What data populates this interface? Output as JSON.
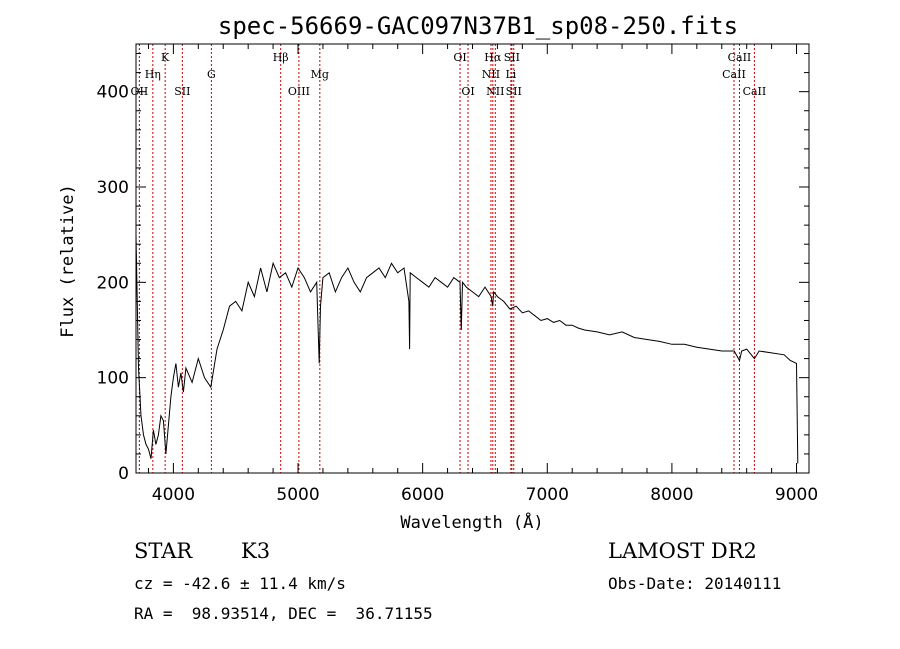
{
  "chart_data": {
    "type": "line",
    "title": "spec-56669-GAC097N37B1_sp08-250.fits",
    "xlabel": "Wavelength (Å)",
    "ylabel": "Flux (relative)",
    "xlim": [
      3700,
      9100
    ],
    "ylim": [
      0,
      450
    ],
    "x_ticks": [
      4000,
      5000,
      6000,
      7000,
      8000,
      9000
    ],
    "y_ticks": [
      0,
      100,
      200,
      300,
      400
    ],
    "grid": false,
    "line_color": "#000000",
    "marker_color": "#cc0000",
    "series": [
      {
        "x": [
          3700,
          3720,
          3740,
          3760,
          3780,
          3800,
          3820,
          3840,
          3860,
          3880,
          3900,
          3920,
          3940,
          3960,
          3980,
          4000,
          4020,
          4040,
          4060,
          4080,
          4100,
          4150,
          4200,
          4250,
          4300,
          4350,
          4400,
          4450,
          4500,
          4550,
          4600,
          4650,
          4700,
          4750,
          4800,
          4850,
          4900,
          4950,
          5000,
          5050,
          5100,
          5150,
          5170,
          5180,
          5200,
          5250,
          5300,
          5350,
          5400,
          5450,
          5500,
          5550,
          5600,
          5650,
          5700,
          5750,
          5800,
          5850,
          5890,
          5895,
          5900,
          5950,
          6000,
          6050,
          6100,
          6150,
          6200,
          6250,
          6300,
          6310,
          6320,
          6350,
          6400,
          6450,
          6500,
          6550,
          6562,
          6570,
          6600,
          6650,
          6700,
          6750,
          6800,
          6850,
          6900,
          6950,
          7000,
          7050,
          7100,
          7150,
          7200,
          7250,
          7300,
          7400,
          7500,
          7600,
          7700,
          7800,
          7900,
          8000,
          8100,
          8200,
          8300,
          8400,
          8500,
          8542,
          8560,
          8600,
          8662,
          8700,
          8800,
          8900,
          8950,
          9000,
          9010
        ],
        "y": [
          250,
          110,
          60,
          40,
          30,
          25,
          15,
          45,
          30,
          40,
          60,
          55,
          20,
          50,
          80,
          100,
          115,
          90,
          105,
          85,
          110,
          95,
          120,
          100,
          90,
          130,
          150,
          175,
          180,
          170,
          200,
          185,
          215,
          190,
          220,
          205,
          210,
          195,
          215,
          205,
          190,
          200,
          115,
          175,
          205,
          210,
          190,
          205,
          215,
          200,
          190,
          205,
          210,
          215,
          205,
          220,
          210,
          215,
          180,
          130,
          210,
          205,
          200,
          195,
          205,
          200,
          195,
          205,
          200,
          150,
          200,
          195,
          190,
          185,
          195,
          185,
          175,
          190,
          185,
          180,
          172,
          175,
          168,
          170,
          165,
          160,
          162,
          158,
          160,
          155,
          155,
          152,
          150,
          148,
          145,
          148,
          142,
          140,
          138,
          135,
          135,
          132,
          130,
          128,
          128,
          118,
          128,
          130,
          120,
          128,
          126,
          124,
          118,
          115,
          10
        ]
      }
    ],
    "spectral_lines": [
      {
        "name": "Hη",
        "x": 3835,
        "row": 2
      },
      {
        "name": "OII",
        "x": 3727,
        "row": 3
      },
      {
        "name": "K",
        "x": 3934,
        "row": 1
      },
      {
        "name": "SII",
        "x": 4072,
        "row": 3
      },
      {
        "name": "G",
        "x": 4305,
        "row": 2
      },
      {
        "name": "Hβ",
        "x": 4861,
        "row": 1
      },
      {
        "name": "OIII",
        "x": 5007,
        "row": 3
      },
      {
        "name": "Mg",
        "x": 5175,
        "row": 2
      },
      {
        "name": "OI",
        "x": 6300,
        "row": 1
      },
      {
        "name": "OI",
        "x": 6364,
        "row": 3
      },
      {
        "name": "Hα",
        "x": 6563,
        "row": 1
      },
      {
        "name": "NII",
        "x": 6548,
        "row": 2
      },
      {
        "name": "NII",
        "x": 6583,
        "row": 3
      },
      {
        "name": "SII",
        "x": 6716,
        "row": 1
      },
      {
        "name": "Li",
        "x": 6708,
        "row": 2
      },
      {
        "name": "SII",
        "x": 6731,
        "row": 3
      },
      {
        "name": "CaII",
        "x": 8498,
        "row": 2
      },
      {
        "name": "CaII",
        "x": 8542,
        "row": 1
      },
      {
        "name": "CaII",
        "x": 8662,
        "row": 3
      }
    ]
  },
  "info": {
    "object_class": "STAR",
    "subclass": "K3",
    "survey": "LAMOST DR2",
    "redshift": "cz = -42.6 ± 11.4 km/s",
    "obs_date": "Obs-Date: 20140111",
    "coords": "RA =  98.93514, DEC =  36.71155"
  }
}
